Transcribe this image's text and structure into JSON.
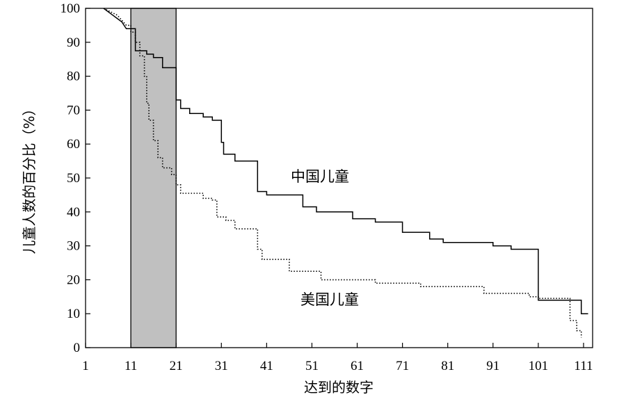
{
  "chart_data": {
    "type": "line",
    "xlabel": "达到的数字",
    "ylabel": "儿童人数的百分比（%）",
    "xlim": [
      1,
      113
    ],
    "ylim": [
      0,
      100
    ],
    "x_ticks": [
      1,
      11,
      21,
      31,
      41,
      51,
      61,
      71,
      81,
      91,
      101,
      111
    ],
    "y_ticks": [
      0,
      10,
      20,
      30,
      40,
      50,
      60,
      70,
      80,
      90,
      100
    ],
    "grid": false,
    "highlight_band": {
      "x_range": [
        11,
        21
      ],
      "color": "#c0c0c0"
    },
    "series": [
      {
        "name": "中国儿童",
        "style": "solid",
        "step": true,
        "points": [
          [
            5,
            100
          ],
          [
            6,
            99
          ],
          [
            7,
            98
          ],
          [
            8,
            97
          ],
          [
            9,
            96
          ],
          [
            10,
            94
          ],
          [
            12,
            94
          ],
          [
            12,
            87.5
          ],
          [
            14.5,
            87.5
          ],
          [
            14.5,
            86.5
          ],
          [
            16,
            86.5
          ],
          [
            16,
            85.5
          ],
          [
            18,
            85.5
          ],
          [
            18,
            82.5
          ],
          [
            21,
            82.5
          ],
          [
            21,
            73
          ],
          [
            22,
            73
          ],
          [
            22,
            70.5
          ],
          [
            24,
            70.5
          ],
          [
            24,
            69
          ],
          [
            27,
            69
          ],
          [
            27,
            68
          ],
          [
            29,
            68
          ],
          [
            29,
            67
          ],
          [
            31,
            67
          ],
          [
            31,
            60.5
          ],
          [
            31.5,
            60.5
          ],
          [
            31.5,
            57
          ],
          [
            34,
            57
          ],
          [
            34,
            55
          ],
          [
            39,
            55
          ],
          [
            39,
            46
          ],
          [
            41,
            46
          ],
          [
            41,
            45
          ],
          [
            49,
            45
          ],
          [
            49,
            41.5
          ],
          [
            52,
            41.5
          ],
          [
            52,
            40
          ],
          [
            60,
            40
          ],
          [
            60,
            38
          ],
          [
            65,
            38
          ],
          [
            65,
            37
          ],
          [
            71,
            37
          ],
          [
            71,
            34
          ],
          [
            77,
            34
          ],
          [
            77,
            32
          ],
          [
            80,
            32
          ],
          [
            80,
            31
          ],
          [
            91,
            31
          ],
          [
            91,
            30
          ],
          [
            95,
            30
          ],
          [
            95,
            29
          ],
          [
            101,
            29
          ],
          [
            101,
            14
          ],
          [
            110.5,
            14
          ],
          [
            110.5,
            10
          ],
          [
            112,
            10
          ]
        ]
      },
      {
        "name": "美国儿童",
        "style": "dotted",
        "step": true,
        "points": [
          [
            5,
            100
          ],
          [
            8,
            98
          ],
          [
            10,
            95
          ],
          [
            11,
            95
          ],
          [
            11,
            93
          ],
          [
            12,
            93
          ],
          [
            12,
            90
          ],
          [
            13,
            90
          ],
          [
            13,
            86
          ],
          [
            14,
            86
          ],
          [
            14,
            80
          ],
          [
            14.5,
            80
          ],
          [
            14.5,
            72
          ],
          [
            15,
            72
          ],
          [
            15,
            67
          ],
          [
            16,
            67
          ],
          [
            16,
            61
          ],
          [
            17,
            61
          ],
          [
            17,
            56
          ],
          [
            18,
            56
          ],
          [
            18,
            53
          ],
          [
            20,
            53
          ],
          [
            20,
            51
          ],
          [
            21,
            51
          ],
          [
            21,
            48
          ],
          [
            22,
            48
          ],
          [
            22,
            45.5
          ],
          [
            27,
            45.5
          ],
          [
            27,
            44
          ],
          [
            29,
            44
          ],
          [
            29,
            43.5
          ],
          [
            30,
            43.5
          ],
          [
            30,
            38.5
          ],
          [
            32,
            38.5
          ],
          [
            32,
            37.5
          ],
          [
            34,
            37.5
          ],
          [
            34,
            35
          ],
          [
            39,
            35
          ],
          [
            39,
            29
          ],
          [
            40,
            29
          ],
          [
            40,
            26
          ],
          [
            46,
            26
          ],
          [
            46,
            22.5
          ],
          [
            53,
            22.5
          ],
          [
            53,
            20
          ],
          [
            65,
            20
          ],
          [
            65,
            19
          ],
          [
            75,
            19
          ],
          [
            75,
            18
          ],
          [
            89,
            18
          ],
          [
            89,
            16
          ],
          [
            99,
            16
          ],
          [
            99,
            15
          ],
          [
            101,
            15
          ],
          [
            101,
            14.5
          ],
          [
            108,
            14.5
          ],
          [
            108,
            8
          ],
          [
            109.5,
            8
          ],
          [
            109.5,
            5
          ],
          [
            110.5,
            5
          ],
          [
            110.5,
            3
          ]
        ]
      }
    ]
  }
}
